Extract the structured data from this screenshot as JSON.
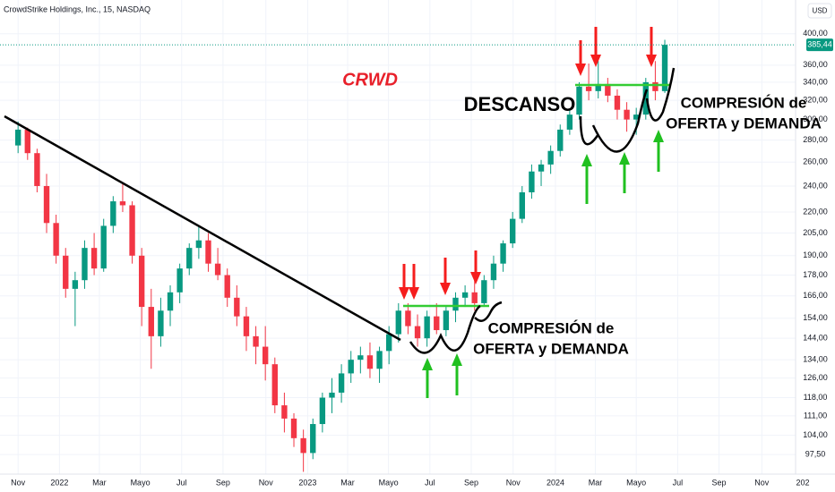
{
  "chart_data": {
    "type": "candlestick",
    "title": "CrowdStrike Holdings, Inc., 15, NASDAQ",
    "currency": "USD",
    "log_scale": true,
    "grid": true,
    "up_color": "#089981",
    "down_color": "#f23645",
    "x": [
      0,
      2,
      4,
      6,
      8,
      10,
      12,
      14,
      16,
      18,
      20,
      22,
      24,
      26,
      28,
      30,
      32,
      34,
      36,
      38,
      40,
      42,
      44,
      46,
      48,
      50,
      52,
      54,
      56,
      58,
      60,
      62,
      64,
      66,
      68,
      70,
      72,
      74,
      76,
      78,
      80,
      82,
      84,
      86,
      88,
      90,
      92,
      94,
      96,
      98,
      100,
      102,
      104,
      106,
      108,
      110,
      112,
      114,
      116,
      118,
      120,
      122,
      124,
      126,
      128,
      130,
      132,
      134,
      136
    ],
    "open": [
      275,
      290,
      268,
      240,
      212,
      190,
      170,
      175,
      195,
      182,
      210,
      228,
      225,
      190,
      160,
      145,
      158,
      168,
      182,
      195,
      200,
      185,
      178,
      165,
      155,
      145,
      140,
      132,
      115,
      110,
      103,
      98,
      108,
      118,
      120,
      128,
      134,
      136,
      130,
      138,
      146,
      158,
      150,
      144,
      155,
      148,
      158,
      165,
      168,
      162,
      175,
      185,
      198,
      215,
      235,
      252,
      258,
      270,
      290,
      305,
      335,
      330,
      338,
      325,
      310,
      300,
      305,
      340,
      330
    ],
    "high": [
      298,
      292,
      272,
      250,
      218,
      195,
      180,
      200,
      205,
      215,
      232,
      242,
      228,
      195,
      170,
      165,
      172,
      185,
      198,
      210,
      205,
      195,
      182,
      172,
      160,
      150,
      150,
      135,
      120,
      112,
      106,
      110,
      120,
      126,
      132,
      138,
      140,
      142,
      140,
      150,
      162,
      162,
      156,
      158,
      162,
      160,
      168,
      172,
      175,
      178,
      190,
      200,
      220,
      240,
      258,
      262,
      275,
      295,
      310,
      340,
      362,
      365,
      345,
      332,
      318,
      312,
      345,
      365,
      392
    ],
    "low": [
      268,
      262,
      235,
      205,
      185,
      165,
      150,
      170,
      178,
      180,
      205,
      220,
      185,
      150,
      130,
      140,
      150,
      162,
      178,
      188,
      180,
      175,
      160,
      150,
      138,
      132,
      125,
      112,
      105,
      100,
      92,
      96,
      105,
      112,
      116,
      124,
      128,
      126,
      124,
      132,
      142,
      146,
      140,
      140,
      146,
      145,
      152,
      160,
      158,
      160,
      170,
      180,
      195,
      212,
      230,
      240,
      250,
      265,
      285,
      300,
      320,
      322,
      318,
      300,
      288,
      285,
      300,
      320,
      328
    ],
    "close": [
      290,
      268,
      240,
      212,
      190,
      170,
      175,
      195,
      182,
      210,
      228,
      225,
      190,
      160,
      145,
      158,
      168,
      182,
      195,
      200,
      185,
      178,
      165,
      155,
      145,
      140,
      132,
      115,
      110,
      103,
      98,
      108,
      118,
      120,
      128,
      134,
      136,
      130,
      138,
      146,
      158,
      150,
      144,
      155,
      148,
      158,
      165,
      168,
      162,
      175,
      185,
      198,
      215,
      235,
      252,
      258,
      270,
      290,
      305,
      335,
      330,
      338,
      325,
      310,
      300,
      305,
      340,
      330,
      385.44
    ],
    "ylim": [
      91.3,
      448
    ],
    "yticks": [
      {
        "value": 97.5,
        "label": "97,50"
      },
      {
        "value": 104,
        "label": "104,00"
      },
      {
        "value": 111,
        "label": "111,00"
      },
      {
        "value": 118,
        "label": "118,00"
      },
      {
        "value": 126,
        "label": "126,00"
      },
      {
        "value": 134,
        "label": "134,00"
      },
      {
        "value": 144,
        "label": "144,00"
      },
      {
        "value": 154,
        "label": "154,00"
      },
      {
        "value": 166,
        "label": "166,00"
      },
      {
        "value": 178,
        "label": "178,00"
      },
      {
        "value": 190,
        "label": "190,00"
      },
      {
        "value": 205,
        "label": "205,00"
      },
      {
        "value": 220,
        "label": "220,00"
      },
      {
        "value": 240,
        "label": "240,00"
      },
      {
        "value": 260,
        "label": "260,00"
      },
      {
        "value": 280,
        "label": "280,00"
      },
      {
        "value": 300,
        "label": "300,00"
      },
      {
        "value": 320,
        "label": "320,00"
      },
      {
        "value": 340,
        "label": "340,00"
      },
      {
        "value": 360,
        "label": "360,00"
      },
      {
        "value": 400,
        "label": "400,00"
      }
    ],
    "xlim": [
      -3.8,
      163.5
    ],
    "xticks": [
      {
        "value": 0,
        "label": "Nov"
      },
      {
        "value": 8.7,
        "label": "2022"
      },
      {
        "value": 17.1,
        "label": "Mar"
      },
      {
        "value": 25.7,
        "label": "Mayo"
      },
      {
        "value": 34.4,
        "label": "Jul"
      },
      {
        "value": 43.1,
        "label": "Sep"
      },
      {
        "value": 52.1,
        "label": "Nov"
      },
      {
        "value": 60.9,
        "label": "2023"
      },
      {
        "value": 69.3,
        "label": "Mar"
      },
      {
        "value": 77.9,
        "label": "Mayo"
      },
      {
        "value": 86.6,
        "label": "Jul"
      },
      {
        "value": 95.3,
        "label": "Sep"
      },
      {
        "value": 104.1,
        "label": "Nov"
      },
      {
        "value": 113,
        "label": "2024"
      },
      {
        "value": 121.4,
        "label": "Mar"
      },
      {
        "value": 130,
        "label": "Mayo"
      },
      {
        "value": 138.7,
        "label": "Jul"
      },
      {
        "value": 147.4,
        "label": "Sep"
      },
      {
        "value": 156.4,
        "label": "Nov"
      },
      {
        "value": 165,
        "label": "202"
      }
    ],
    "last_price": {
      "value": 385.44,
      "label": "385,44"
    },
    "annotations": [
      "CRWD",
      "DESCANSO",
      "COMPRESIÓN de",
      "OFERTA y DEMANDA",
      "COMPRESIÓN de",
      "OFERTA y DEMANDA"
    ]
  }
}
